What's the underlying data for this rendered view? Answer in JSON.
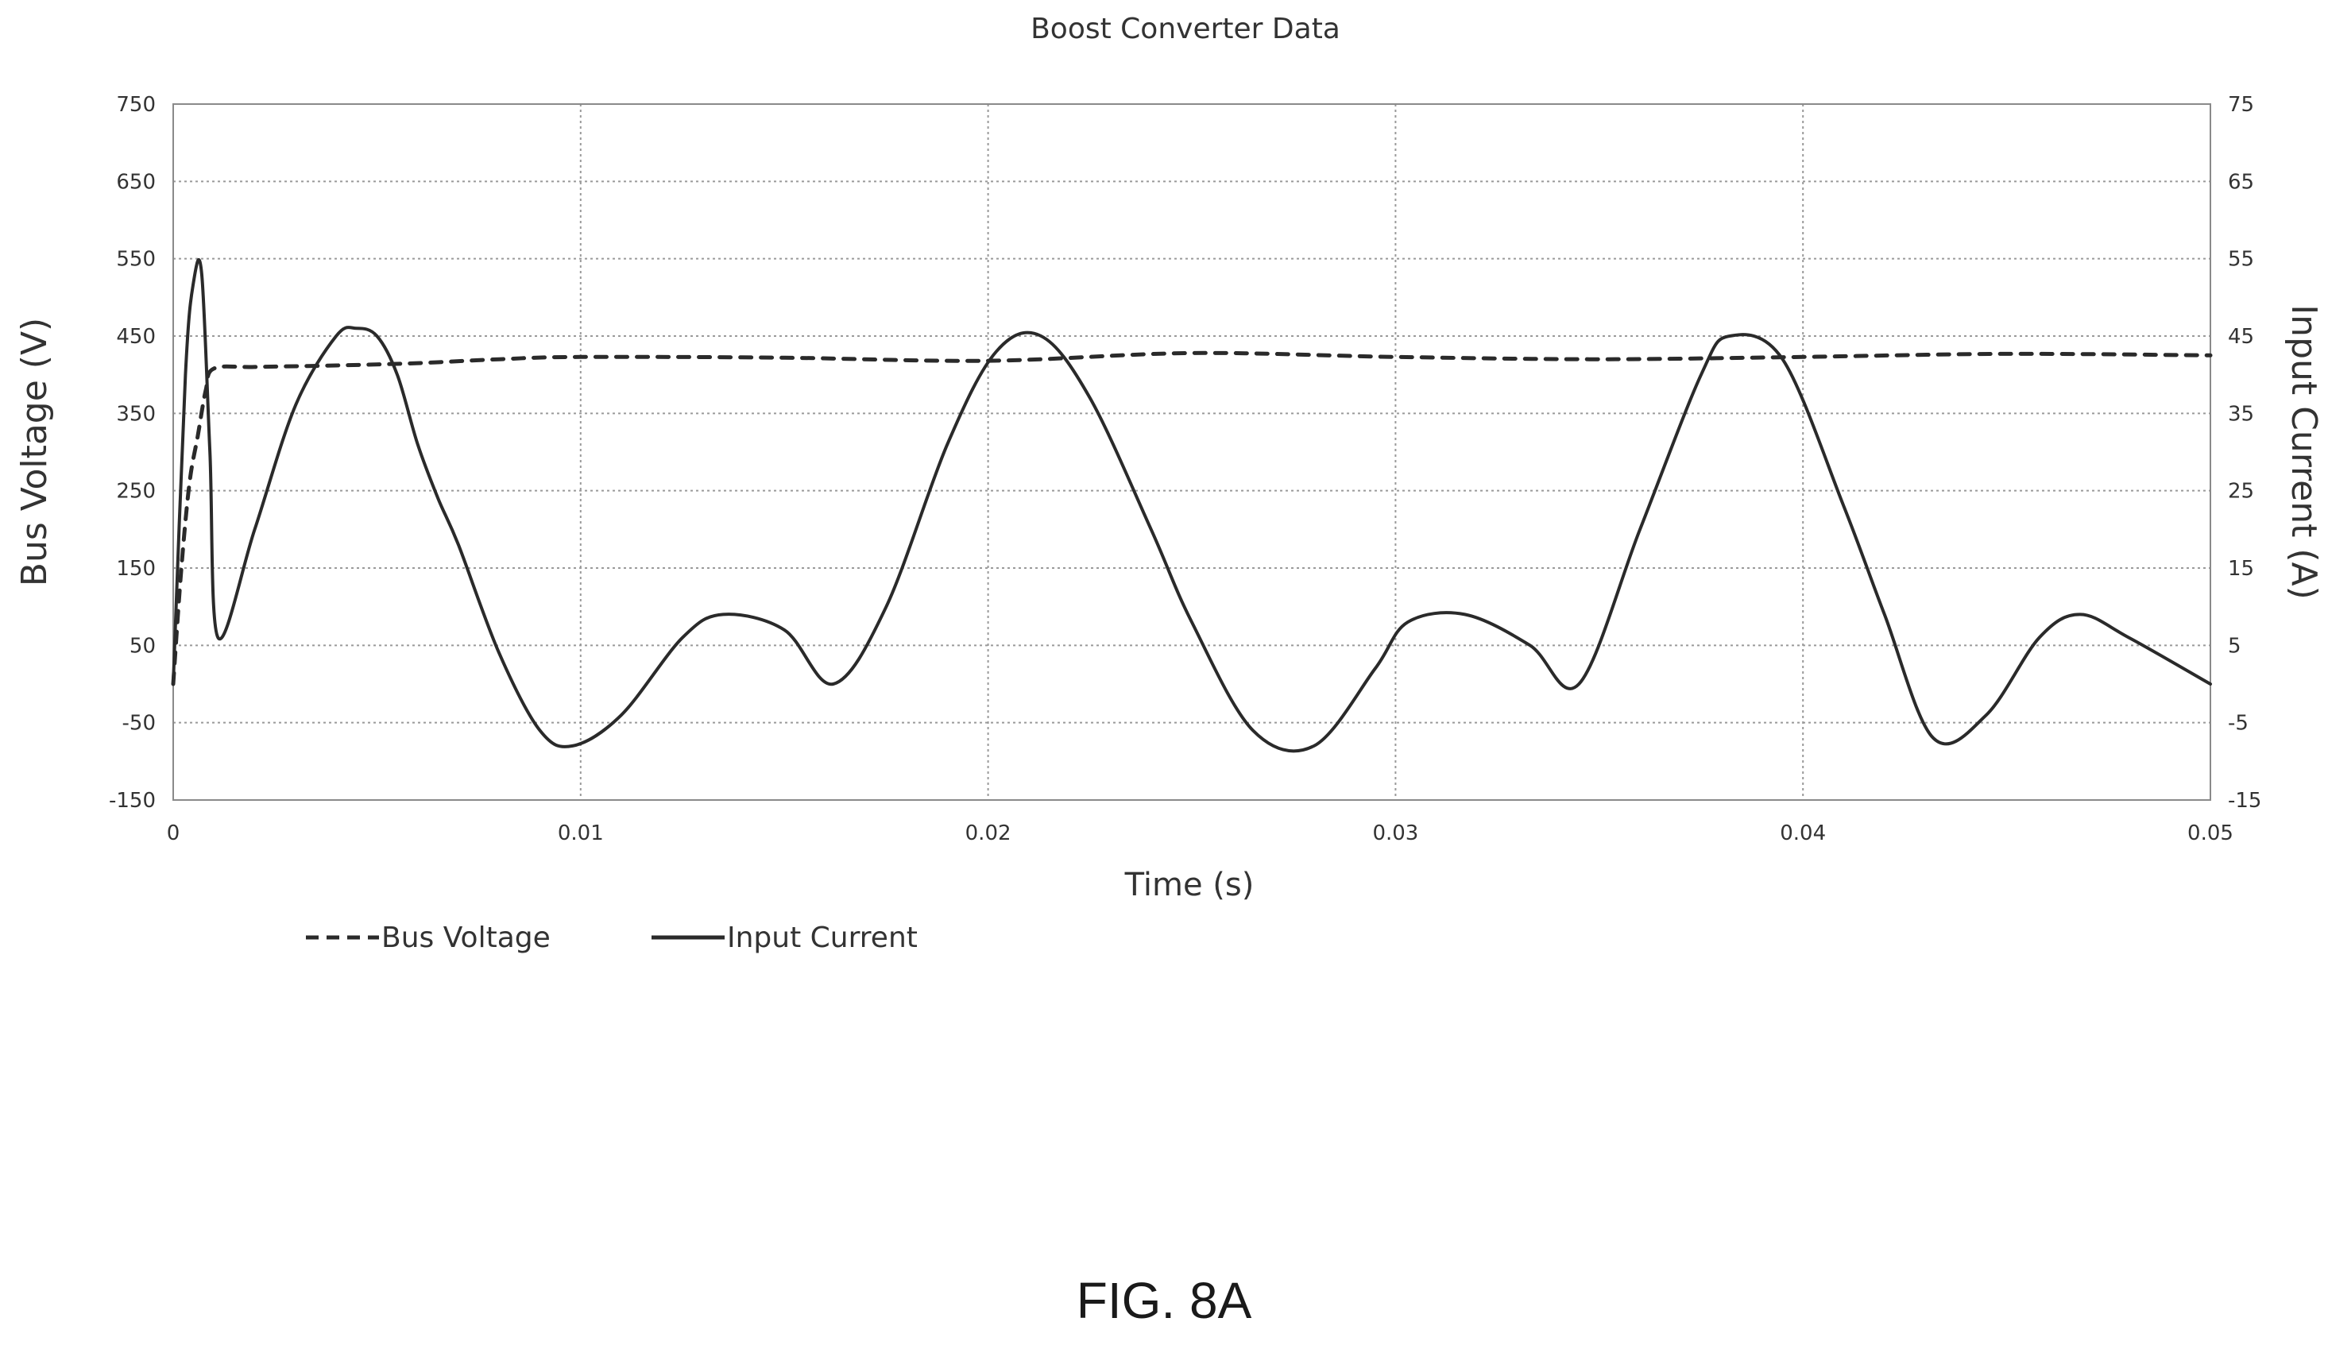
{
  "figure_label": "FIG. 8A",
  "chart_data": {
    "type": "line",
    "title": "Boost Converter Data",
    "xlabel": "Time (s)",
    "ylabel_left": "Bus Voltage (V)",
    "ylabel_right": "Input Current (A)",
    "xlim": [
      0,
      0.05
    ],
    "ylim_left": [
      -150,
      750
    ],
    "ylim_right": [
      -15,
      75
    ],
    "x_ticks": [
      "0",
      "0.01",
      "0.02",
      "0.03",
      "0.04",
      "0.05"
    ],
    "y_ticks_left": [
      "750",
      "650",
      "550",
      "450",
      "350",
      "250",
      "150",
      "50",
      "-50",
      "-150"
    ],
    "y_ticks_right": [
      "75",
      "65",
      "55",
      "45",
      "35",
      "25",
      "15",
      "5",
      "-5",
      "-15"
    ],
    "grid": true,
    "legend_position": "bottom-left",
    "colors": {
      "series": "#2a2a2a",
      "grid": "#9a9a9a"
    },
    "series": [
      {
        "name": "Bus Voltage",
        "axis": "left",
        "style": "dashed",
        "x": [
          0,
          0.0002,
          0.0004,
          0.0006,
          0.0008,
          0.001,
          0.002,
          0.004,
          0.006,
          0.008,
          0.01,
          0.015,
          0.02,
          0.025,
          0.03,
          0.035,
          0.04,
          0.045,
          0.05
        ],
        "y": [
          0,
          150,
          260,
          320,
          380,
          408,
          410,
          412,
          415,
          420,
          423,
          422,
          418,
          428,
          423,
          420,
          423,
          427,
          425
        ]
      },
      {
        "name": "Input Current",
        "axis": "right",
        "style": "solid",
        "x": [
          0,
          0.0003,
          0.0005,
          0.0007,
          0.0009,
          0.0011,
          0.002,
          0.003,
          0.004,
          0.0045,
          0.005,
          0.0055,
          0.006,
          0.0065,
          0.007,
          0.008,
          0.009,
          0.0098,
          0.011,
          0.0125,
          0.0135,
          0.015,
          0.0162,
          0.0175,
          0.019,
          0.0202,
          0.0213,
          0.0225,
          0.024,
          0.025,
          0.0265,
          0.028,
          0.0295,
          0.0303,
          0.0317,
          0.0333,
          0.0345,
          0.036,
          0.0375,
          0.0382,
          0.0395,
          0.041,
          0.042,
          0.0432,
          0.0445,
          0.0458,
          0.0468,
          0.048,
          0.05
        ],
        "y": [
          0,
          40,
          52,
          53,
          30,
          6,
          20,
          36,
          45,
          46,
          45,
          40,
          31,
          24,
          18,
          4,
          -6,
          -8,
          -4,
          6,
          9,
          7,
          0,
          10,
          31,
          43,
          45,
          37,
          20,
          8,
          -6,
          -8,
          2,
          8,
          9,
          5,
          0,
          20,
          40,
          45,
          42,
          23,
          9,
          -7,
          -4,
          6,
          9,
          6,
          0
        ]
      }
    ]
  }
}
